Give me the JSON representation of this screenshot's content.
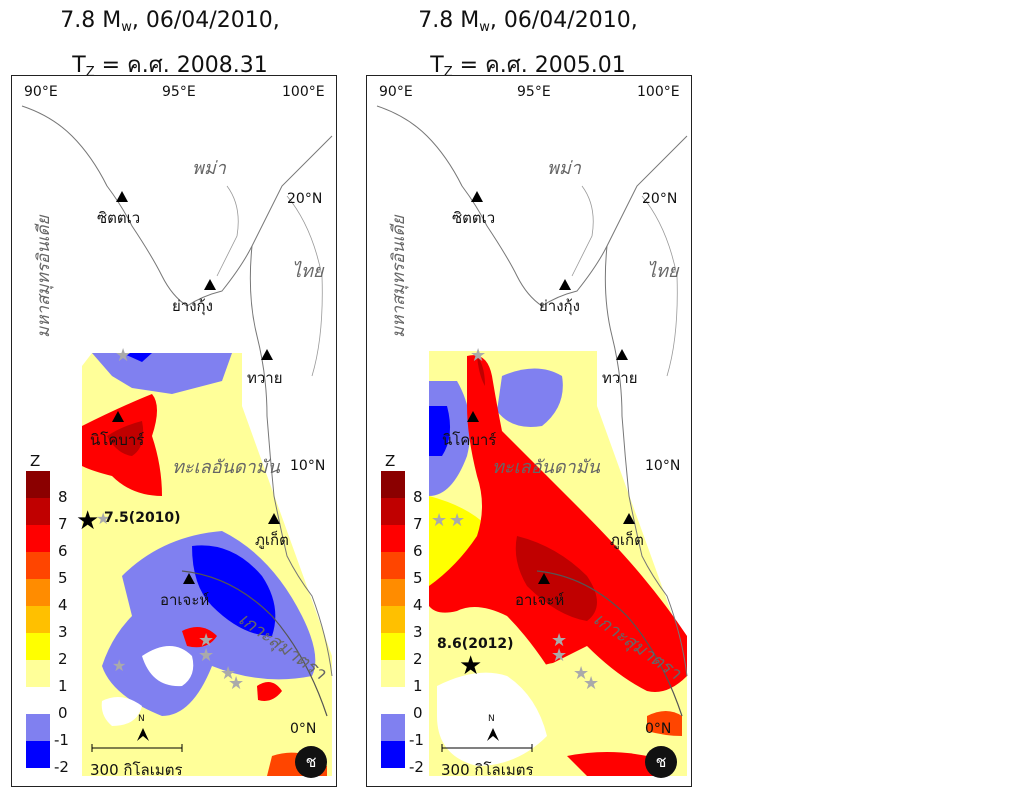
{
  "panels": [
    {
      "title_pre": "7.8 M",
      "title_sub": "w",
      "title_post": ", 06/04/2010,",
      "tz_pre": "T",
      "tz_sub": "Z",
      "tz_post": " = ค.ศ. 2008.31",
      "event_label": "7.5(2010)",
      "scale_label": "300 กิโลเมตร",
      "badge": "ช"
    },
    {
      "title_pre": "7.8 M",
      "title_sub": "w",
      "title_post": ", 06/04/2010,",
      "tz_pre": "T",
      "tz_sub": "Z",
      "tz_post": " = ค.ศ. 2005.01",
      "event_label": "8.6(2012)",
      "scale_label": "300 กิโลเมตร",
      "badge": "ช"
    }
  ],
  "map_labels": {
    "lon_90": "90°E",
    "lon_95": "95°E",
    "lon_100": "100°E",
    "lat_20": "20°N",
    "lat_10": "10°N",
    "lat_0": "0°N",
    "myanmar": "พม่า",
    "thailand": "ไทย",
    "indian_ocean": "มหาสมุทรอินเดีย",
    "andaman_sea": "ทะเลอันดามัน",
    "sumatra": "เกาะสุมาตรา",
    "sittwe": "ซิตตเว",
    "yangon": "ย่างกุ้ง",
    "dawei": "ทวาย",
    "nicobar": "นิโคบาร์",
    "phuket": "ภูเก็ต",
    "aceh": "อาเจะห์",
    "north": "N"
  },
  "colorbar": {
    "title": "Z",
    "ticks": [
      "8",
      "7",
      "6",
      "5",
      "4",
      "3",
      "2",
      "1",
      "0",
      "-1",
      "-2"
    ],
    "colors": [
      "#8b0000",
      "#c00000",
      "#ff0000",
      "#ff4500",
      "#ff8c00",
      "#ffc000",
      "#ffff00",
      "#ffff99",
      "#ffffff",
      "#8080f0",
      "#0000ff"
    ]
  }
}
